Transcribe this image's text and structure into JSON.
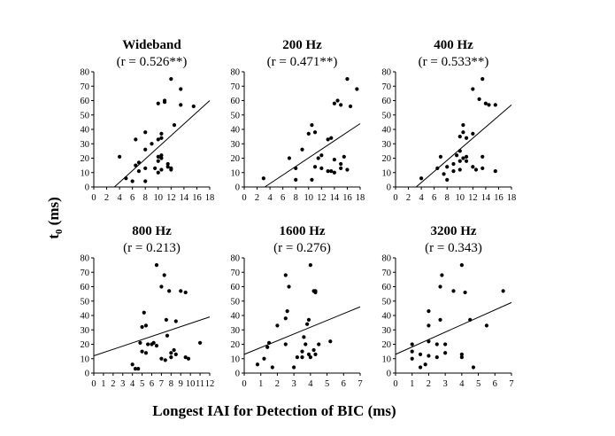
{
  "figure": {
    "xlabel": "Longest IAI for Detection of BIC (ms)",
    "ylabel_main": "t",
    "ylabel_sub": "0",
    "ylabel_unit": " (ms)"
  },
  "chart_data": [
    {
      "type": "scatter",
      "title": "Wideband",
      "subtitle": "(r = 0.526**)",
      "xlim": [
        0,
        18
      ],
      "ylim": [
        0,
        80
      ],
      "xticks": [
        0,
        2,
        4,
        6,
        8,
        10,
        12,
        14,
        16,
        18
      ],
      "yticks": [
        0,
        10,
        20,
        30,
        40,
        50,
        60,
        70,
        80
      ],
      "fit_line": {
        "x": [
          3.2,
          18
        ],
        "y": [
          0,
          60
        ]
      },
      "points": [
        [
          4,
          21
        ],
        [
          5,
          6
        ],
        [
          6,
          4
        ],
        [
          6.5,
          15
        ],
        [
          6.5,
          33
        ],
        [
          7,
          11
        ],
        [
          7,
          17
        ],
        [
          8,
          4
        ],
        [
          8,
          13
        ],
        [
          8,
          26
        ],
        [
          8,
          38
        ],
        [
          9,
          30
        ],
        [
          9.5,
          13
        ],
        [
          10,
          10
        ],
        [
          10,
          18
        ],
        [
          10,
          21
        ],
        [
          10,
          33
        ],
        [
          10,
          58
        ],
        [
          10.5,
          12
        ],
        [
          10.5,
          20
        ],
        [
          10.5,
          22
        ],
        [
          10.5,
          34
        ],
        [
          10.5,
          37
        ],
        [
          11,
          59
        ],
        [
          11,
          60
        ],
        [
          11.5,
          14
        ],
        [
          11.5,
          16
        ],
        [
          12,
          12
        ],
        [
          12,
          75
        ],
        [
          12,
          13
        ],
        [
          12.5,
          43
        ],
        [
          13.5,
          68
        ],
        [
          13.5,
          57
        ],
        [
          15.5,
          56
        ]
      ]
    },
    {
      "type": "scatter",
      "title": "200 Hz",
      "subtitle": "(r = 0.471**)",
      "xlim": [
        0,
        18
      ],
      "ylim": [
        0,
        80
      ],
      "xticks": [
        0,
        2,
        4,
        6,
        8,
        10,
        12,
        14,
        16,
        18
      ],
      "yticks": [
        0,
        10,
        20,
        30,
        40,
        50,
        60,
        70,
        80
      ],
      "fit_line": {
        "x": [
          3.2,
          18
        ],
        "y": [
          0,
          44
        ]
      },
      "points": [
        [
          3,
          6
        ],
        [
          7,
          20
        ],
        [
          8,
          13
        ],
        [
          8,
          5
        ],
        [
          9,
          26
        ],
        [
          10,
          37
        ],
        [
          10.5,
          5
        ],
        [
          10.5,
          43
        ],
        [
          11,
          38
        ],
        [
          11,
          14
        ],
        [
          11.5,
          20
        ],
        [
          12,
          22
        ],
        [
          12,
          13
        ],
        [
          13,
          11
        ],
        [
          13,
          33
        ],
        [
          13.5,
          34
        ],
        [
          13.5,
          11
        ],
        [
          14,
          58
        ],
        [
          14,
          10
        ],
        [
          14,
          19
        ],
        [
          14.5,
          60
        ],
        [
          15,
          13
        ],
        [
          15,
          16
        ],
        [
          15,
          57
        ],
        [
          15.5,
          21
        ],
        [
          16,
          12
        ],
        [
          16,
          75
        ],
        [
          16.5,
          56
        ],
        [
          17.5,
          68
        ]
      ]
    },
    {
      "type": "scatter",
      "title": "400 Hz",
      "subtitle": "(r = 0.533**)",
      "xlim": [
        0,
        18
      ],
      "ylim": [
        0,
        80
      ],
      "xticks": [
        0,
        2,
        4,
        6,
        8,
        10,
        12,
        14,
        16,
        18
      ],
      "yticks": [
        0,
        10,
        20,
        30,
        40,
        50,
        60,
        70,
        80
      ],
      "fit_line": {
        "x": [
          3.2,
          18
        ],
        "y": [
          0,
          57
        ]
      },
      "points": [
        [
          4,
          6
        ],
        [
          6.5,
          13
        ],
        [
          7,
          21
        ],
        [
          7.5,
          9
        ],
        [
          8,
          5
        ],
        [
          8,
          14
        ],
        [
          9,
          16
        ],
        [
          9,
          11
        ],
        [
          9.5,
          22
        ],
        [
          10,
          18
        ],
        [
          10,
          25
        ],
        [
          10,
          35
        ],
        [
          10,
          12
        ],
        [
          10.5,
          20
        ],
        [
          10.5,
          43
        ],
        [
          10.5,
          38
        ],
        [
          11,
          34
        ],
        [
          11,
          18
        ],
        [
          11,
          21
        ],
        [
          12,
          68
        ],
        [
          12,
          14
        ],
        [
          12,
          37
        ],
        [
          12.5,
          12
        ],
        [
          13,
          61
        ],
        [
          13.5,
          75
        ],
        [
          13.5,
          13
        ],
        [
          13.5,
          21
        ],
        [
          14,
          58
        ],
        [
          14.5,
          57
        ],
        [
          15.5,
          57
        ],
        [
          15.5,
          11
        ]
      ]
    },
    {
      "type": "scatter",
      "title": "800 Hz",
      "subtitle": "(r = 0.213)",
      "xlim": [
        0,
        12
      ],
      "ylim": [
        0,
        80
      ],
      "xticks": [
        0,
        1,
        2,
        3,
        4,
        5,
        6,
        7,
        8,
        9,
        10,
        11,
        12
      ],
      "yticks": [
        0,
        10,
        20,
        30,
        40,
        50,
        60,
        70,
        80
      ],
      "fit_line": {
        "x": [
          0,
          12
        ],
        "y": [
          12,
          39
        ]
      },
      "points": [
        [
          4,
          6
        ],
        [
          4.3,
          3
        ],
        [
          4.6,
          3
        ],
        [
          4.8,
          21
        ],
        [
          5,
          15
        ],
        [
          5,
          32
        ],
        [
          5.2,
          42
        ],
        [
          5.4,
          14
        ],
        [
          5.4,
          33
        ],
        [
          5.6,
          20
        ],
        [
          6,
          20
        ],
        [
          6.2,
          21
        ],
        [
          6.5,
          75
        ],
        [
          6.5,
          19
        ],
        [
          7,
          60
        ],
        [
          7,
          10
        ],
        [
          7.3,
          68
        ],
        [
          7.4,
          9
        ],
        [
          7.5,
          37
        ],
        [
          7.6,
          26
        ],
        [
          7.8,
          57
        ],
        [
          8,
          11
        ],
        [
          8,
          14
        ],
        [
          8.3,
          16
        ],
        [
          8.5,
          36
        ],
        [
          8.5,
          13
        ],
        [
          9,
          57
        ],
        [
          9.5,
          56
        ],
        [
          9.5,
          11
        ],
        [
          9.8,
          10
        ],
        [
          11,
          21
        ]
      ]
    },
    {
      "type": "scatter",
      "title": "1600 Hz",
      "subtitle": "(r = 0.276)",
      "xlim": [
        0,
        7
      ],
      "ylim": [
        0,
        80
      ],
      "xticks": [
        0,
        1,
        2,
        3,
        4,
        5,
        6,
        7
      ],
      "yticks": [
        0,
        10,
        20,
        30,
        40,
        50,
        60,
        70,
        80
      ],
      "fit_line": {
        "x": [
          0,
          7
        ],
        "y": [
          13,
          46
        ]
      },
      "points": [
        [
          0.8,
          6
        ],
        [
          1.2,
          10
        ],
        [
          1.4,
          18
        ],
        [
          1.5,
          21
        ],
        [
          1.7,
          4
        ],
        [
          2,
          33
        ],
        [
          2.5,
          20
        ],
        [
          2.5,
          38
        ],
        [
          2.5,
          68
        ],
        [
          2.6,
          43
        ],
        [
          2.7,
          60
        ],
        [
          3,
          4
        ],
        [
          3.2,
          11
        ],
        [
          3.5,
          15
        ],
        [
          3.5,
          11
        ],
        [
          3.6,
          25
        ],
        [
          3.7,
          20
        ],
        [
          3.8,
          34
        ],
        [
          3.9,
          37
        ],
        [
          3.9,
          13
        ],
        [
          4,
          75
        ],
        [
          4,
          11
        ],
        [
          4.2,
          16
        ],
        [
          4.2,
          57
        ],
        [
          4.3,
          56
        ],
        [
          4.3,
          57
        ],
        [
          4.3,
          13
        ],
        [
          4.5,
          20
        ],
        [
          5.2,
          22
        ]
      ]
    },
    {
      "type": "scatter",
      "title": "3200 Hz",
      "subtitle": "(r = 0.343)",
      "xlim": [
        0,
        7
      ],
      "ylim": [
        0,
        80
      ],
      "xticks": [
        0,
        1,
        2,
        3,
        4,
        5,
        6,
        7
      ],
      "yticks": [
        0,
        10,
        20,
        30,
        40,
        50,
        60,
        70,
        80
      ],
      "fit_line": {
        "x": [
          0,
          7
        ],
        "y": [
          13,
          49
        ]
      },
      "points": [
        [
          1,
          10
        ],
        [
          1,
          15
        ],
        [
          1,
          20
        ],
        [
          1.5,
          13
        ],
        [
          1.5,
          4
        ],
        [
          1.8,
          6
        ],
        [
          2,
          43
        ],
        [
          2,
          33
        ],
        [
          2,
          22
        ],
        [
          2,
          12
        ],
        [
          2.5,
          20
        ],
        [
          2.5,
          11
        ],
        [
          2.7,
          37
        ],
        [
          2.7,
          60
        ],
        [
          2.8,
          68
        ],
        [
          3,
          20
        ],
        [
          3,
          14
        ],
        [
          3.5,
          57
        ],
        [
          4,
          75
        ],
        [
          4,
          13
        ],
        [
          4,
          11
        ],
        [
          4.2,
          56
        ],
        [
          4.5,
          37
        ],
        [
          4.7,
          4
        ],
        [
          5.5,
          33
        ],
        [
          6.5,
          57
        ]
      ]
    }
  ]
}
